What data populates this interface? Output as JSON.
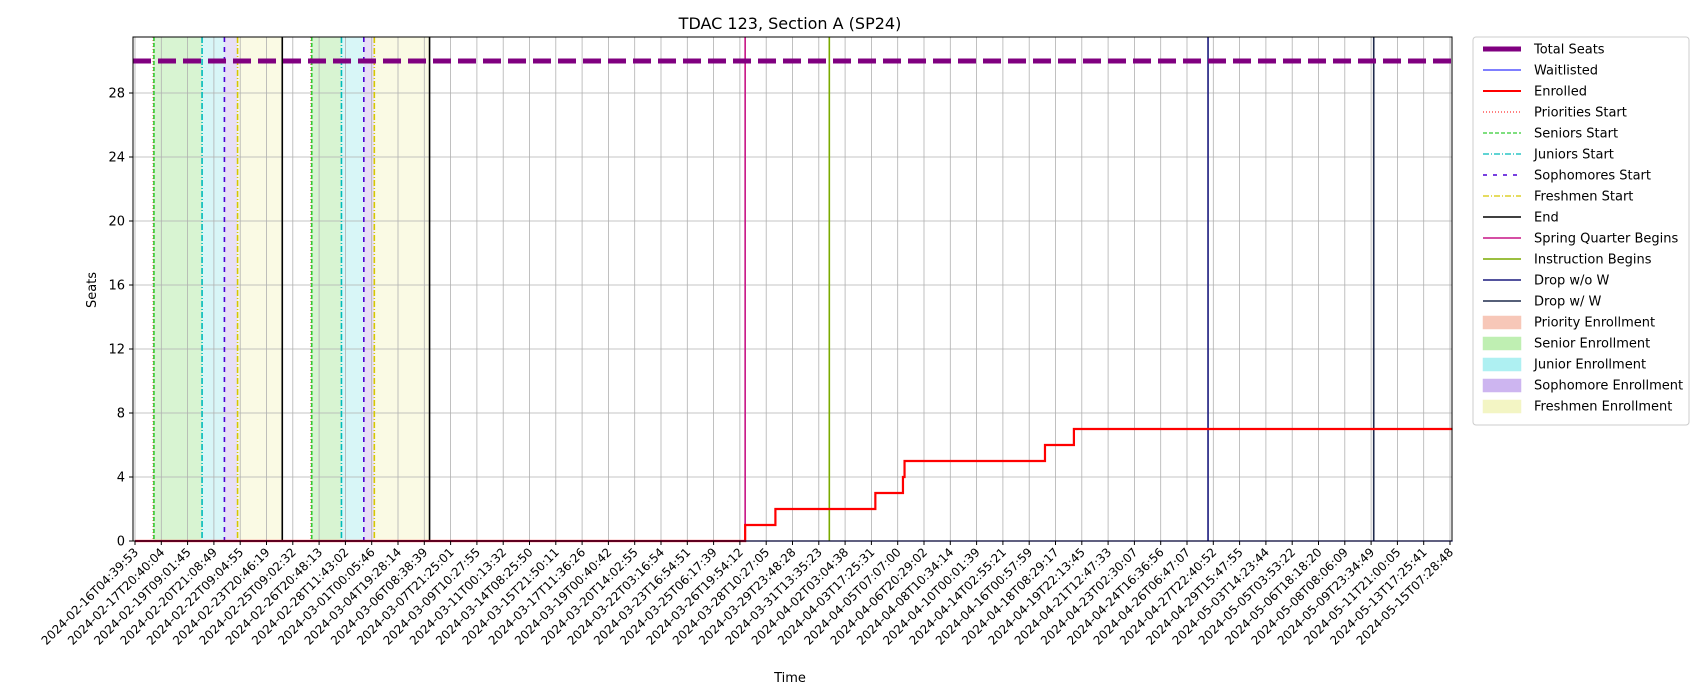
{
  "chart_data": {
    "type": "line",
    "title": "TDAC 123, Section A (SP24)",
    "xlabel": "Time",
    "ylabel": "Seats",
    "ylim": [
      0,
      31.5
    ],
    "y_ticks": [
      0,
      4,
      8,
      12,
      16,
      20,
      24,
      28
    ],
    "x_ticks": [
      "2024-02-16T04:39:53",
      "2024-02-17T20:40:04",
      "2024-02-19T09:01:45",
      "2024-02-20T21:08:49",
      "2024-02-22T09:04:55",
      "2024-02-23T20:46:19",
      "2024-02-25T09:02:32",
      "2024-02-26T20:48:13",
      "2024-02-28T11:43:02",
      "2024-03-01T00:05:46",
      "2024-03-04T19:28:14",
      "2024-03-06T08:38:39",
      "2024-03-07T21:25:01",
      "2024-03-09T10:27:55",
      "2024-03-11T00:13:32",
      "2024-03-14T08:25:50",
      "2024-03-15T21:50:11",
      "2024-03-17T11:36:26",
      "2024-03-19T00:40:42",
      "2024-03-20T14:02:55",
      "2024-03-22T03:16:54",
      "2024-03-23T16:54:51",
      "2024-03-25T06:17:39",
      "2024-03-26T19:54:12",
      "2024-03-28T10:27:05",
      "2024-03-29T23:48:28",
      "2024-03-31T13:35:23",
      "2024-04-02T03:04:38",
      "2024-04-03T17:25:31",
      "2024-04-05T07:07:00",
      "2024-04-06T20:29:02",
      "2024-04-08T10:34:14",
      "2024-04-10T00:01:39",
      "2024-04-14T02:55:21",
      "2024-04-16T00:57:59",
      "2024-04-18T08:29:17",
      "2024-04-19T22:13:45",
      "2024-04-21T12:47:33",
      "2024-04-23T02:30:07",
      "2024-04-24T16:36:56",
      "2024-04-26T06:47:07",
      "2024-04-27T22:40:52",
      "2024-04-29T15:47:55",
      "2024-05-03T14:23:44",
      "2024-05-05T03:53:22",
      "2024-05-06T18:18:20",
      "2024-05-08T08:06:09",
      "2024-05-09T23:34:49",
      "2024-05-11T21:00:05",
      "2024-05-13T17:25:41",
      "2024-05-15T07:28:48"
    ],
    "total_seats": 30,
    "series": [
      {
        "name": "Enrolled",
        "color": "#ff0000",
        "steps": [
          {
            "x": 0,
            "y": 0
          },
          {
            "x": 23.2,
            "y": 1
          },
          {
            "x": 24.35,
            "y": 2
          },
          {
            "x": 28.15,
            "y": 3
          },
          {
            "x": 29.2,
            "y": 4
          },
          {
            "x": 29.26,
            "y": 5
          },
          {
            "x": 34.6,
            "y": 6
          },
          {
            "x": 35.7,
            "y": 7
          },
          {
            "x": 50.1,
            "y": 7
          }
        ]
      },
      {
        "name": "Waitlisted",
        "color": "#0000ff",
        "steps": [
          {
            "x": 0,
            "y": 0
          },
          {
            "x": 50.1,
            "y": 0
          }
        ]
      }
    ],
    "shaded_periods": [
      {
        "kind": "Senior Enrollment",
        "color": "#7fd96b",
        "from": 0.7,
        "to": 2.55
      },
      {
        "kind": "Junior Enrollment",
        "color": "#7fe1e6",
        "from": 2.55,
        "to": 3.4
      },
      {
        "kind": "Sophomore Enrollment",
        "color": "#b495e6",
        "from": 3.4,
        "to": 3.9
      },
      {
        "kind": "Freshmen Enrollment",
        "color": "#edf0a6",
        "from": 3.9,
        "to": 5.6
      },
      {
        "kind": "Senior Enrollment",
        "color": "#7fd96b",
        "from": 6.7,
        "to": 7.85
      },
      {
        "kind": "Junior Enrollment",
        "color": "#7fe1e6",
        "from": 7.85,
        "to": 8.7
      },
      {
        "kind": "Sophomore Enrollment",
        "color": "#b495e6",
        "from": 8.7,
        "to": 9.1
      },
      {
        "kind": "Freshmen Enrollment",
        "color": "#edf0a6",
        "from": 9.1,
        "to": 11.2
      }
    ],
    "event_lines": [
      {
        "kind": "Priorities Start",
        "color": "#ff3333",
        "dash": "1,2",
        "x": 0.7
      },
      {
        "kind": "Seniors Start",
        "color": "#33cc33",
        "dash": "4,2",
        "x": 0.72
      },
      {
        "kind": "Juniors Start",
        "color": "#00bbbb",
        "dash": "6,2,1,2",
        "x": 2.55
      },
      {
        "kind": "Sophomores Start",
        "color": "#4b00d6",
        "dash": "5,5",
        "x": 3.4
      },
      {
        "kind": "Freshmen Start",
        "color": "#d6c800",
        "dash": "6,2,1,2",
        "x": 3.9
      },
      {
        "kind": "End",
        "color": "#000000",
        "dash": "",
        "x": 5.6
      },
      {
        "kind": "Priorities Start",
        "color": "#ff3333",
        "dash": "1,2",
        "x": 6.7
      },
      {
        "kind": "Seniors Start",
        "color": "#33cc33",
        "dash": "4,2",
        "x": 6.72
      },
      {
        "kind": "Juniors Start",
        "color": "#00bbbb",
        "dash": "6,2,1,2",
        "x": 7.85
      },
      {
        "kind": "Sophomores Start",
        "color": "#4b00d6",
        "dash": "5,5",
        "x": 8.7
      },
      {
        "kind": "Freshmen Start",
        "color": "#d6c800",
        "dash": "6,2,1,2",
        "x": 9.1
      },
      {
        "kind": "End",
        "color": "#000000",
        "dash": "",
        "x": 11.2
      },
      {
        "kind": "Spring Quarter Begins",
        "color": "#c71585",
        "dash": "",
        "x": 23.2
      },
      {
        "kind": "Instruction Begins",
        "color": "#7aaa00",
        "dash": "",
        "x": 26.4
      },
      {
        "kind": "Drop w/o W",
        "color": "#1a1a7e",
        "dash": "",
        "x": 40.8
      },
      {
        "kind": "Drop w/ W",
        "color": "#1f2b4d",
        "dash": "",
        "x": 47.1
      }
    ],
    "legend": {
      "placement": "outside-right",
      "entries": [
        {
          "label": "Total Seats",
          "style": "line",
          "color": "#800080",
          "width": 5,
          "dash": ""
        },
        {
          "label": "Waitlisted",
          "style": "line",
          "color": "#3333ff",
          "width": 1.2,
          "dash": ""
        },
        {
          "label": "Enrolled",
          "style": "line",
          "color": "#ff0000",
          "width": 2,
          "dash": ""
        },
        {
          "label": "Priorities Start",
          "style": "line",
          "color": "#ff3333",
          "width": 1.2,
          "dash": "1,2"
        },
        {
          "label": "Seniors Start",
          "style": "line",
          "color": "#33cc33",
          "width": 1.2,
          "dash": "4,2"
        },
        {
          "label": "Juniors Start",
          "style": "line",
          "color": "#00bbbb",
          "width": 1.2,
          "dash": "6,2,1,2"
        },
        {
          "label": "Sophomores Start",
          "style": "line",
          "color": "#4b00d6",
          "width": 1.5,
          "dash": "4,6"
        },
        {
          "label": "Freshmen Start",
          "style": "line",
          "color": "#d6c800",
          "width": 1.2,
          "dash": "6,2,1,2"
        },
        {
          "label": "End",
          "style": "line",
          "color": "#000000",
          "width": 1.5,
          "dash": ""
        },
        {
          "label": "Spring Quarter Begins",
          "style": "line",
          "color": "#c71585",
          "width": 1.5,
          "dash": ""
        },
        {
          "label": "Instruction Begins",
          "style": "line",
          "color": "#7aaa00",
          "width": 1.5,
          "dash": ""
        },
        {
          "label": "Drop w/o W",
          "style": "line",
          "color": "#1a1a7e",
          "width": 1.5,
          "dash": ""
        },
        {
          "label": "Drop w/ W",
          "style": "line",
          "color": "#1f2b4d",
          "width": 1.5,
          "dash": ""
        },
        {
          "label": "Priority Enrollment",
          "style": "patch",
          "color": "#f7c7b8"
        },
        {
          "label": "Senior Enrollment",
          "style": "patch",
          "color": "#bfefb2"
        },
        {
          "label": "Junior Enrollment",
          "style": "patch",
          "color": "#aef0f2"
        },
        {
          "label": "Sophomore Enrollment",
          "style": "patch",
          "color": "#cdb5f0"
        },
        {
          "label": "Freshmen Enrollment",
          "style": "patch",
          "color": "#f3f5c4"
        }
      ]
    },
    "grid": true,
    "total_seats_color": "#800080"
  }
}
